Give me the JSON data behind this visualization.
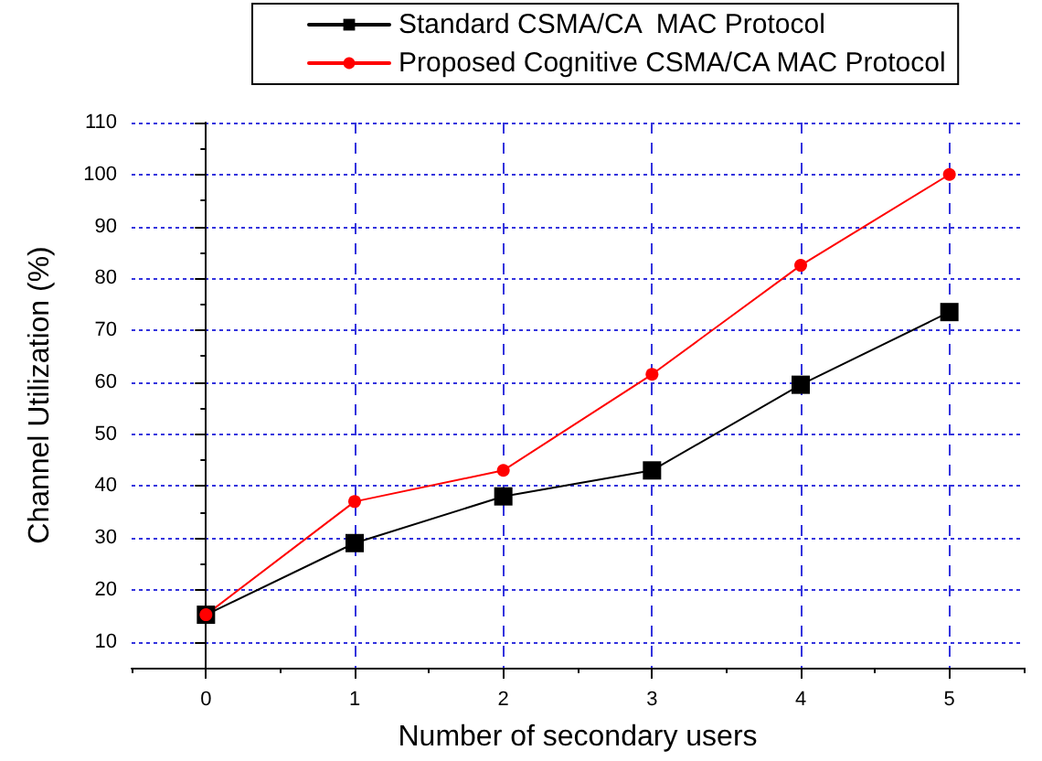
{
  "chart_data": {
    "type": "line",
    "xlabel": "Number of secondary users",
    "ylabel": "Channel Utilization (%)",
    "x": [
      0,
      1,
      2,
      3,
      4,
      5
    ],
    "series": [
      {
        "name": "Standard CSMA/CA  MAC Protocol",
        "color": "#000000",
        "marker": "square",
        "values": [
          15.2,
          29,
          38,
          43,
          59.5,
          73.5
        ]
      },
      {
        "name": "Proposed Cognitive CSMA/CA MAC Protocol",
        "color": "#ff0000",
        "marker": "circle",
        "values": [
          15.2,
          37,
          43,
          61.5,
          82.5,
          100
        ]
      }
    ],
    "xlim": [
      -0.5,
      5.5
    ],
    "xticks": [
      0,
      1,
      2,
      3,
      4,
      5
    ],
    "ylim": [
      5,
      110
    ],
    "yticks": [
      10,
      20,
      30,
      40,
      50,
      60,
      70,
      80,
      90,
      100,
      110
    ],
    "grid": true,
    "legend": "top",
    "line_style": "solid"
  }
}
